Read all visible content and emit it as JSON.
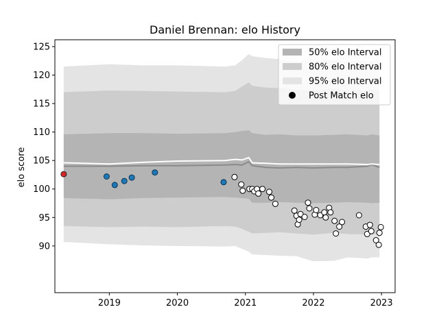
{
  "chart_data": {
    "type": "line",
    "title": "Daniel Brennan: elo History",
    "xlabel": "",
    "ylabel": "elo score",
    "xlim": [
      2018.2,
      2023.2
    ],
    "ylim": [
      81.8,
      126.2
    ],
    "x_ticks": [
      2019,
      2020,
      2021,
      2022,
      2023
    ],
    "x_tick_labels": [
      "2019",
      "2020",
      "2021",
      "2022",
      "2023"
    ],
    "y_ticks": [
      90,
      95,
      100,
      105,
      110,
      115,
      120,
      125
    ],
    "y_tick_labels": [
      "90",
      "95",
      "100",
      "105",
      "110",
      "115",
      "120",
      "125"
    ],
    "grid": false,
    "legend_position": "top-right",
    "legend": [
      {
        "label": "50% elo Interval",
        "kind": "band-50"
      },
      {
        "label": "80% elo Interval",
        "kind": "band-80"
      },
      {
        "label": "95% elo Interval",
        "kind": "band-95"
      },
      {
        "label": "Post Match elo",
        "kind": "marker"
      }
    ],
    "colors": {
      "band_50": "#b4b4b4",
      "band_80": "#cdcdcd",
      "band_95": "#e4e4e4",
      "mean_line": "#8a8a8a",
      "center_line": "#ffffff",
      "first_point": "#d62728",
      "early_points": "#1f77b4",
      "late_points": "#ffffff"
    },
    "bands": {
      "x": [
        2018.33,
        2019.0,
        2019.5,
        2020.0,
        2020.7,
        2020.85,
        2020.95,
        2021.05,
        2021.1,
        2021.3,
        2021.5,
        2021.75,
        2022.0,
        2022.3,
        2022.5,
        2022.8,
        2022.85,
        2022.97
      ],
      "mean": [
        104.0,
        104.0,
        104.1,
        104.1,
        104.2,
        104.3,
        104.2,
        104.8,
        104.1,
        103.8,
        103.7,
        103.8,
        103.7,
        103.8,
        103.8,
        104.0,
        104.3,
        103.8
      ],
      "center": [
        104.6,
        104.4,
        104.7,
        104.9,
        105.0,
        105.2,
        105.1,
        105.5,
        104.6,
        104.5,
        104.4,
        104.4,
        104.4,
        104.4,
        104.4,
        104.3,
        104.4,
        104.3
      ],
      "lower_50": [
        98.4,
        98.2,
        98.4,
        98.5,
        98.6,
        98.5,
        98.4,
        98.3,
        97.6,
        97.6,
        97.7,
        97.6,
        97.5,
        97.6,
        97.7,
        97.6,
        97.5,
        97.6
      ],
      "upper_50": [
        109.6,
        109.8,
        109.8,
        109.7,
        109.8,
        110.0,
        110.2,
        110.3,
        109.8,
        109.5,
        109.6,
        109.4,
        109.4,
        109.5,
        109.6,
        109.4,
        109.6,
        109.4
      ],
      "lower_80": [
        93.5,
        93.3,
        93.4,
        93.3,
        93.5,
        93.4,
        93.0,
        92.5,
        92.2,
        92.3,
        92.4,
        92.2,
        92.0,
        92.3,
        92.1,
        92.0,
        92.0,
        92.1
      ],
      "upper_80": [
        117.0,
        117.3,
        117.2,
        117.1,
        117.0,
        117.2,
        118.0,
        118.7,
        118.1,
        117.8,
        117.7,
        117.4,
        117.3,
        117.6,
        117.2,
        117.3,
        117.5,
        117.2
      ],
      "lower_95": [
        90.7,
        90.3,
        90.1,
        90.0,
        89.9,
        90.0,
        89.5,
        89.0,
        88.5,
        88.4,
        88.3,
        88.2,
        87.3,
        87.4,
        88.0,
        87.8,
        88.0,
        88.0
      ],
      "upper_95": [
        121.5,
        121.9,
        121.7,
        121.7,
        121.5,
        121.7,
        122.6,
        123.7,
        123.3,
        123.0,
        122.8,
        122.4,
        122.8,
        122.7,
        122.5,
        122.3,
        122.5,
        122.2
      ]
    },
    "points": [
      {
        "x": 2018.33,
        "y": 102.6,
        "group": "first"
      },
      {
        "x": 2018.96,
        "y": 102.2,
        "group": "early"
      },
      {
        "x": 2019.08,
        "y": 100.7,
        "group": "early"
      },
      {
        "x": 2019.22,
        "y": 101.4,
        "group": "early"
      },
      {
        "x": 2019.33,
        "y": 102.0,
        "group": "early"
      },
      {
        "x": 2019.67,
        "y": 102.9,
        "group": "early"
      },
      {
        "x": 2020.68,
        "y": 101.2,
        "group": "early"
      },
      {
        "x": 2020.84,
        "y": 102.1,
        "group": "late"
      },
      {
        "x": 2020.94,
        "y": 100.8,
        "group": "late"
      },
      {
        "x": 2020.96,
        "y": 99.7,
        "group": "late"
      },
      {
        "x": 2021.06,
        "y": 100.0,
        "group": "late"
      },
      {
        "x": 2021.1,
        "y": 100.0,
        "group": "late"
      },
      {
        "x": 2021.13,
        "y": 99.6,
        "group": "late"
      },
      {
        "x": 2021.17,
        "y": 100.0,
        "group": "late"
      },
      {
        "x": 2021.19,
        "y": 99.2,
        "group": "late"
      },
      {
        "x": 2021.25,
        "y": 100.0,
        "group": "late"
      },
      {
        "x": 2021.35,
        "y": 99.5,
        "group": "late"
      },
      {
        "x": 2021.38,
        "y": 98.5,
        "group": "late"
      },
      {
        "x": 2021.44,
        "y": 97.4,
        "group": "late"
      },
      {
        "x": 2021.72,
        "y": 96.2,
        "group": "late"
      },
      {
        "x": 2021.75,
        "y": 95.3,
        "group": "late"
      },
      {
        "x": 2021.77,
        "y": 93.8,
        "group": "late"
      },
      {
        "x": 2021.79,
        "y": 94.6,
        "group": "late"
      },
      {
        "x": 2021.81,
        "y": 95.6,
        "group": "late"
      },
      {
        "x": 2021.87,
        "y": 95.1,
        "group": "late"
      },
      {
        "x": 2021.92,
        "y": 97.6,
        "group": "late"
      },
      {
        "x": 2021.94,
        "y": 96.6,
        "group": "late"
      },
      {
        "x": 2022.02,
        "y": 95.5,
        "group": "late"
      },
      {
        "x": 2022.04,
        "y": 96.3,
        "group": "late"
      },
      {
        "x": 2022.1,
        "y": 95.4,
        "group": "late"
      },
      {
        "x": 2022.16,
        "y": 95.9,
        "group": "late"
      },
      {
        "x": 2022.18,
        "y": 95.0,
        "group": "late"
      },
      {
        "x": 2022.23,
        "y": 96.7,
        "group": "late"
      },
      {
        "x": 2022.25,
        "y": 95.9,
        "group": "late"
      },
      {
        "x": 2022.31,
        "y": 94.4,
        "group": "late"
      },
      {
        "x": 2022.33,
        "y": 92.2,
        "group": "late"
      },
      {
        "x": 2022.38,
        "y": 93.4,
        "group": "late"
      },
      {
        "x": 2022.42,
        "y": 94.2,
        "group": "late"
      },
      {
        "x": 2022.67,
        "y": 95.4,
        "group": "late"
      },
      {
        "x": 2022.77,
        "y": 93.4,
        "group": "late"
      },
      {
        "x": 2022.79,
        "y": 92.1,
        "group": "late"
      },
      {
        "x": 2022.83,
        "y": 93.7,
        "group": "late"
      },
      {
        "x": 2022.85,
        "y": 92.6,
        "group": "late"
      },
      {
        "x": 2022.92,
        "y": 91.0,
        "group": "late"
      },
      {
        "x": 2022.96,
        "y": 90.2,
        "group": "late"
      },
      {
        "x": 2022.97,
        "y": 92.3,
        "group": "late"
      },
      {
        "x": 2022.99,
        "y": 93.3,
        "group": "late"
      }
    ]
  }
}
